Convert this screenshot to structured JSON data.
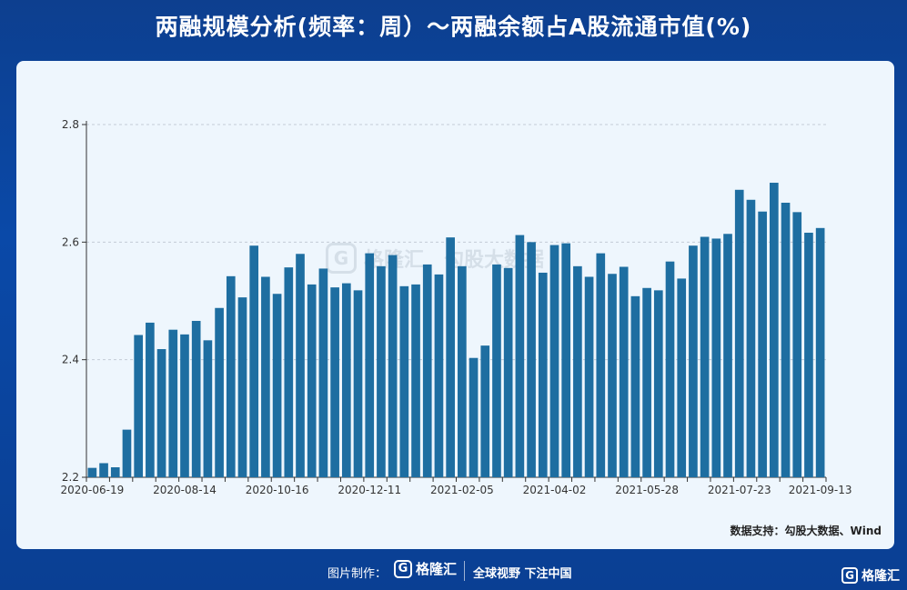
{
  "header": {
    "title": "两融规模分析(频率：周）～两融余额占A股流通市值(%)"
  },
  "watermark": {
    "brand": "格隆汇",
    "text": "勾股大数据"
  },
  "source": {
    "text": "数据支持：勾股大数据、Wind"
  },
  "footer": {
    "label": "图片制作：",
    "logo_text": "格隆汇",
    "slogan": "全球视野 下注中国",
    "corner_logo": "格隆汇"
  },
  "colors": {
    "bar": "#1e6ea1",
    "background": "#0a49a8",
    "panel": "#eef6fd"
  },
  "chart_data": {
    "type": "bar",
    "title": "两融规模分析(频率：周）～两融余额占A股流通市值(%)",
    "xlabel": "",
    "ylabel": "",
    "ylim": [
      2.2,
      2.8
    ],
    "yticks": [
      2.2,
      2.4,
      2.6,
      2.8
    ],
    "grid": "horizontal dashed",
    "xtick_labels": [
      "2020-06-19",
      "2020-08-14",
      "2020-10-16",
      "2020-12-11",
      "2021-02-05",
      "2021-04-02",
      "2021-05-28",
      "2021-07-23",
      "2021-09-13"
    ],
    "values": [
      2.216,
      2.224,
      2.217,
      2.281,
      2.442,
      2.463,
      2.418,
      2.451,
      2.443,
      2.466,
      2.433,
      2.488,
      2.542,
      2.506,
      2.594,
      2.541,
      2.512,
      2.557,
      2.58,
      2.528,
      2.555,
      2.523,
      2.53,
      2.518,
      2.581,
      2.559,
      2.578,
      2.525,
      2.528,
      2.562,
      2.545,
      2.608,
      2.559,
      2.403,
      2.424,
      2.562,
      2.556,
      2.612,
      2.6,
      2.548,
      2.595,
      2.598,
      2.559,
      2.541,
      2.581,
      2.546,
      2.558,
      2.508,
      2.522,
      2.518,
      2.567,
      2.538,
      2.594,
      2.609,
      2.606,
      2.614,
      2.689,
      2.672,
      2.652,
      2.701,
      2.667,
      2.651,
      2.616,
      2.624
    ]
  }
}
